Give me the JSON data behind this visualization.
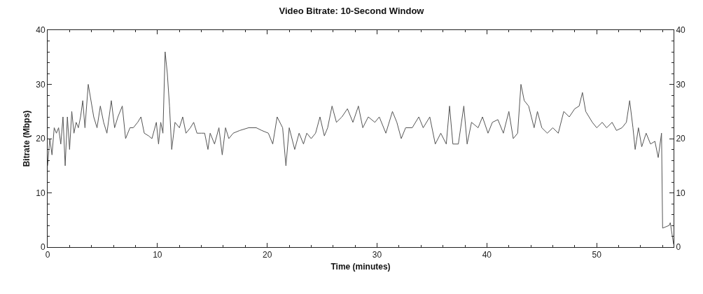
{
  "chart_data": {
    "type": "line",
    "title": "Video Bitrate: 10-Second Window",
    "xlabel": "Time (minutes)",
    "ylabel": "Bitrate (Mbps)",
    "x": [
      0.0,
      0.2,
      0.4,
      0.6,
      0.8,
      1.0,
      1.2,
      1.4,
      1.6,
      1.8,
      2.0,
      2.2,
      2.4,
      2.6,
      2.8,
      3.0,
      3.2,
      3.4,
      3.7,
      4.2,
      4.5,
      4.8,
      5.1,
      5.4,
      5.8,
      6.1,
      6.4,
      6.8,
      7.1,
      7.5,
      7.8,
      8.2,
      8.5,
      8.8,
      9.2,
      9.5,
      9.9,
      10.1,
      10.3,
      10.5,
      10.7,
      10.9,
      11.1,
      11.3,
      11.6,
      12.0,
      12.3,
      12.6,
      13.0,
      13.3,
      13.6,
      14.0,
      14.3,
      14.6,
      14.8,
      15.2,
      15.6,
      15.9,
      16.2,
      16.5,
      16.9,
      17.5,
      18.3,
      19.0,
      19.5,
      20.1,
      20.5,
      20.9,
      21.4,
      21.7,
      22.0,
      22.5,
      22.9,
      23.3,
      23.6,
      24.0,
      24.4,
      24.8,
      25.2,
      25.5,
      25.9,
      26.3,
      26.8,
      27.3,
      27.8,
      28.3,
      28.7,
      29.2,
      29.8,
      30.2,
      30.8,
      31.4,
      31.8,
      32.2,
      32.6,
      33.2,
      33.8,
      34.2,
      34.8,
      35.3,
      35.8,
      36.3,
      36.6,
      36.9,
      37.4,
      37.9,
      38.2,
      38.6,
      39.2,
      39.6,
      40.1,
      40.5,
      41.0,
      41.5,
      42.0,
      42.4,
      42.8,
      43.1,
      43.4,
      43.8,
      44.3,
      44.6,
      45.0,
      45.5,
      46.0,
      46.5,
      47.0,
      47.5,
      48.0,
      48.4,
      48.7,
      49.0,
      49.6,
      50.0,
      50.5,
      50.9,
      51.4,
      51.8,
      52.3,
      52.7,
      53.0,
      53.3,
      53.5,
      53.8,
      54.1,
      54.5,
      54.9,
      55.3,
      55.6,
      55.9,
      56.0,
      56.6,
      56.7,
      57.0
    ],
    "series": [
      {
        "color": "#555555",
        "values": [
          15,
          20,
          17,
          22,
          21,
          22,
          19,
          24,
          15,
          24,
          18,
          25,
          21,
          23,
          22,
          24,
          27,
          22,
          30,
          24,
          22,
          26,
          23,
          21,
          27,
          22,
          24,
          26,
          20,
          22,
          22,
          23,
          24,
          21,
          20.5,
          20,
          23,
          19,
          23,
          21,
          36,
          32,
          26,
          18,
          23,
          22,
          24,
          21,
          22,
          23,
          21,
          21,
          21,
          18,
          21,
          19,
          22,
          17,
          22,
          20,
          21,
          21.5,
          22,
          22,
          21.5,
          21,
          19,
          24,
          22,
          15,
          22,
          18,
          21,
          19,
          21,
          20,
          21,
          24,
          20.5,
          22,
          26,
          23,
          24,
          25.5,
          23,
          26,
          22,
          24,
          23,
          24,
          21,
          25,
          23,
          20,
          22,
          22,
          24,
          22,
          24,
          19,
          21,
          19,
          26,
          19,
          19,
          26,
          19,
          23,
          22,
          24,
          21,
          23,
          23.5,
          21,
          25,
          20,
          21,
          30,
          27,
          26,
          22,
          25,
          22,
          21,
          22,
          21,
          25,
          24,
          25.5,
          26,
          28.5,
          25,
          23,
          22,
          23,
          22,
          23,
          21.5,
          22,
          23,
          27,
          22,
          18,
          22,
          18.5,
          21,
          19,
          19.5,
          16.5,
          21,
          3.5,
          4,
          4.5,
          0.5
        ]
      }
    ],
    "xlim": [
      0,
      57
    ],
    "xticks": [
      0,
      10,
      20,
      30,
      40,
      50
    ],
    "ylim": [
      0,
      40
    ],
    "yticks": [
      0,
      10,
      20,
      30,
      40
    ],
    "y2lim": [
      0,
      40
    ],
    "y2ticks": [
      0,
      10,
      20,
      30,
      40
    ],
    "marker": "none",
    "line_style": "solid"
  }
}
